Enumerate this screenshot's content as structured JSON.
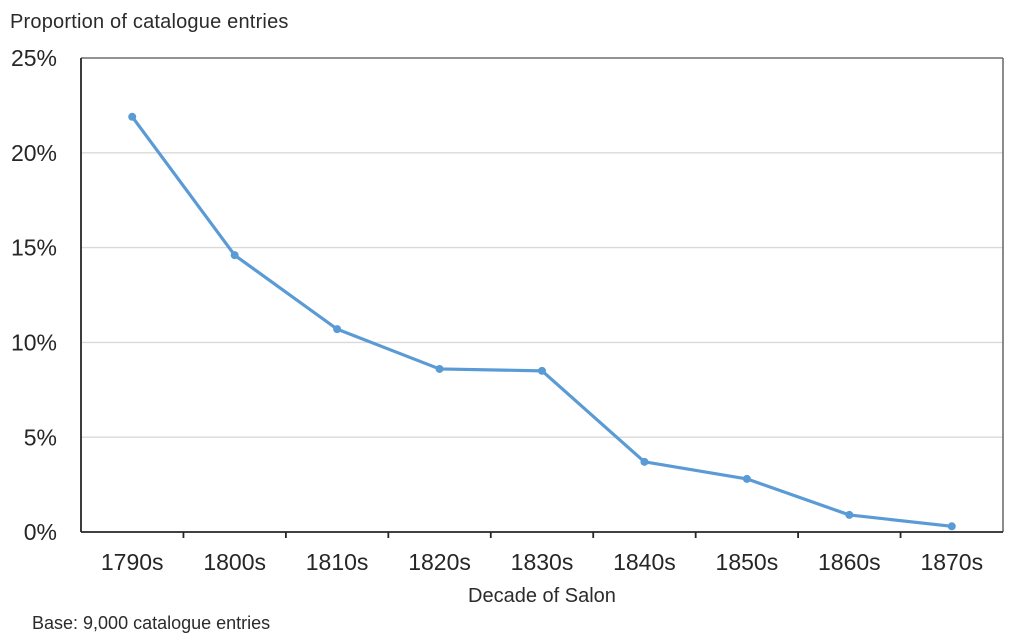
{
  "chart_data": {
    "type": "line",
    "title": "Proportion of catalogue entries",
    "xlabel": "Decade of Salon",
    "ylabel": "Proportion of catalogue entries",
    "categories": [
      "1790s",
      "1800s",
      "1810s",
      "1820s",
      "1830s",
      "1840s",
      "1850s",
      "1860s",
      "1870s"
    ],
    "series": [
      {
        "name": "Proportion of catalogue entries",
        "values": [
          21.9,
          14.6,
          10.7,
          8.6,
          8.5,
          3.7,
          2.8,
          0.9,
          0.3
        ]
      }
    ],
    "unit": "%",
    "ylim": [
      0,
      25
    ],
    "ytick_values": [
      0,
      5,
      10,
      15,
      20,
      25
    ],
    "ytick_labels": [
      "0%",
      "5%",
      "10%",
      "15%",
      "20%",
      "25%"
    ],
    "grid": "horizontal-only",
    "legend": "none",
    "marker": "circle",
    "line_color": "#5B9BD5"
  },
  "footnote": "Base: 9,000 catalogue entries",
  "colors": {
    "line": "#5B9BD5",
    "gridline": "#D9D9D9",
    "axis": "#262626",
    "frame": "#6E6E6E",
    "tick_text": "#262626",
    "text": "#2B2B2B",
    "background": "#FFFFFF"
  }
}
